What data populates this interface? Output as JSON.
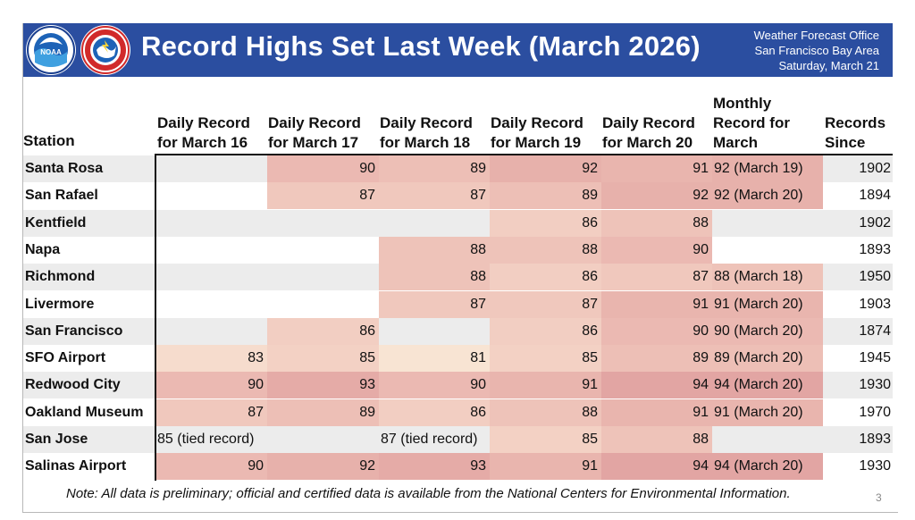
{
  "header": {
    "title": "Record Highs Set Last Week (March 2026)",
    "office_line1": "Weather Forecast Office",
    "office_line2": "San Francisco Bay Area",
    "office_line3": "Saturday, March 21",
    "banner_color": "#2b4ea0",
    "logos": [
      "noaa-logo",
      "nws-logo"
    ]
  },
  "table": {
    "columns": [
      "Station",
      "Daily Record for March 16",
      "Daily Record for March 17",
      "Daily Record for March 18",
      "Daily Record for March 19",
      "Daily Record for March 20",
      "Monthly Record for March",
      "Records Since"
    ],
    "rows": [
      {
        "station": "Santa Rosa",
        "d16": "",
        "d17": "90",
        "d18": "89",
        "d19": "92",
        "d20": "91",
        "monthly": "92 (March 19)",
        "since": "1902"
      },
      {
        "station": "San Rafael",
        "d16": "",
        "d17": "87",
        "d18": "87",
        "d19": "89",
        "d20": "92",
        "monthly": "92 (March 20)",
        "since": "1894"
      },
      {
        "station": "Kentfield",
        "d16": "",
        "d17": "",
        "d18": "",
        "d19": "86",
        "d20": "88",
        "monthly": "",
        "since": "1902"
      },
      {
        "station": "Napa",
        "d16": "",
        "d17": "",
        "d18": "88",
        "d19": "88",
        "d20": "90",
        "monthly": "",
        "since": "1893"
      },
      {
        "station": "Richmond",
        "d16": "",
        "d17": "",
        "d18": "88",
        "d19": "86",
        "d20": "87",
        "monthly": "88 (March 18)",
        "since": "1950"
      },
      {
        "station": "Livermore",
        "d16": "",
        "d17": "",
        "d18": "87",
        "d19": "87",
        "d20": "91",
        "monthly": "91 (March 20)",
        "since": "1903"
      },
      {
        "station": "San Francisco",
        "d16": "",
        "d17": "86",
        "d18": "",
        "d19": "86",
        "d20": "90",
        "monthly": "90 (March 20)",
        "since": "1874"
      },
      {
        "station": "SFO Airport",
        "d16": "83",
        "d17": "85",
        "d18": "81",
        "d19": "85",
        "d20": "89",
        "monthly": "89 (March 20)",
        "since": "1945"
      },
      {
        "station": "Redwood City",
        "d16": "90",
        "d17": "93",
        "d18": "90",
        "d19": "91",
        "d20": "94",
        "monthly": "94 (March 20)",
        "since": "1930"
      },
      {
        "station": "Oakland Museum",
        "d16": "87",
        "d17": "89",
        "d18": "86",
        "d19": "88",
        "d20": "91",
        "monthly": "91 (March 20)",
        "since": "1970"
      },
      {
        "station": "San Jose",
        "d16": "85 (tied record)",
        "d17": "",
        "d18": "87 (tied record)",
        "d19": "85",
        "d20": "88",
        "monthly": "",
        "since": "1893"
      },
      {
        "station": "Salinas Airport",
        "d16": "90",
        "d17": "92",
        "d18": "93",
        "d19": "91",
        "d20": "94",
        "monthly": "94 (March 20)",
        "since": "1930"
      }
    ],
    "heat_colors": {
      "81": "#f8e4d3",
      "83": "#f6dccd",
      "85": "#f3d1c4",
      "86": "#f2cec2",
      "87": "#f0c8bd",
      "88": "#eec3b9",
      "89": "#edbfb6",
      "90": "#ebb9b2",
      "91": "#e9b5ae",
      "92": "#e7b1ab",
      "93": "#e5aba7",
      "94": "#e2a5a3"
    },
    "stripe_color": "#ececec"
  },
  "footer": {
    "note": "Note: All data is preliminary; official and certified data is available from the National Centers for Environmental Information.",
    "page": "3"
  }
}
